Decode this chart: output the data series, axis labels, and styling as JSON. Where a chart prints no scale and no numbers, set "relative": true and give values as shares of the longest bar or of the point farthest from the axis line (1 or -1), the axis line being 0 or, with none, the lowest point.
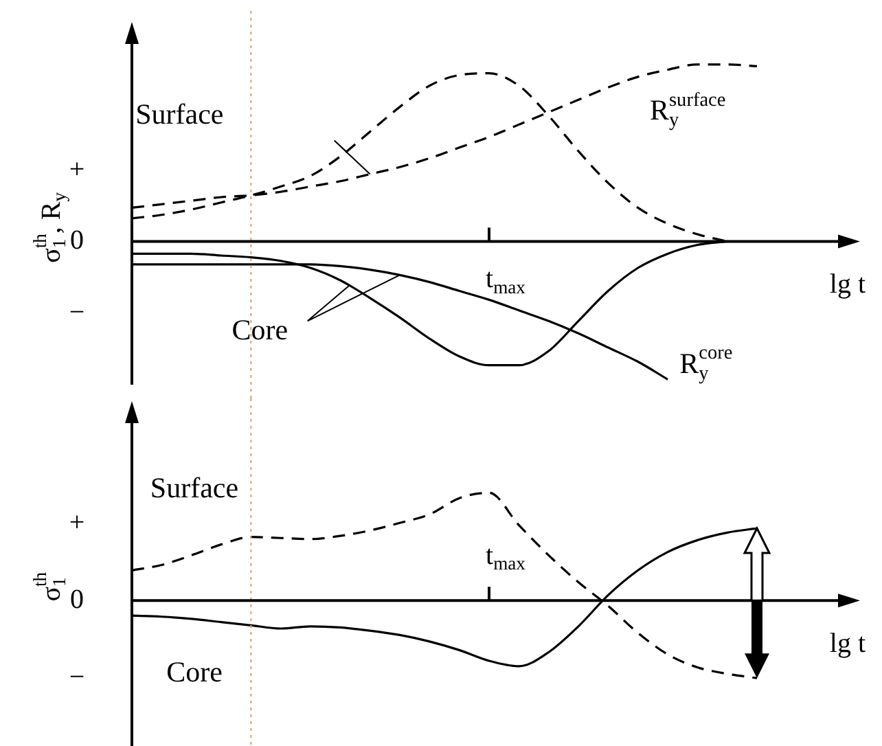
{
  "chart_data": [
    {
      "type": "line",
      "relative": true,
      "ylabel": "σ$_{1}$$^{th}$, R$_{y}$",
      "xlabel": "lg t",
      "categories": [
        null,
        null,
        null,
        null,
        null,
        null,
        null,
        null,
        null,
        null,
        null,
        null,
        null,
        null,
        null,
        null,
        null,
        null,
        null,
        null,
        null,
        null,
        null,
        null,
        null
      ],
      "annotations": [
        "+",
        "0",
        "−",
        "t$_{max}$"
      ],
      "series": [
        {
          "name": "Surface",
          "color": "#000000",
          "line_style": "dashed",
          "values": [
            0.13,
            0.15,
            0.18,
            0.22,
            0.26,
            0.31,
            0.37,
            0.48,
            0.62,
            0.76,
            0.88,
            0.94,
            0.95,
            0.88,
            0.71,
            0.51,
            0.33,
            0.19,
            0.1,
            0.04,
            0,
            null,
            null,
            null,
            null
          ]
        },
        {
          "name": "R$_{y}$$^{surface}$",
          "color": "#000000",
          "line_style": "dashed",
          "values": [
            0.19,
            0.21,
            0.23,
            0.25,
            0.26,
            0.28,
            0.31,
            0.34,
            0.38,
            0.42,
            0.47,
            0.53,
            0.59,
            0.66,
            0.73,
            0.8,
            0.87,
            0.93,
            0.97,
            1,
            1,
            0.99,
            null,
            null,
            null
          ]
        },
        {
          "name": "Core",
          "color": "#000000",
          "line_style": "solid",
          "values": [
            -0.07,
            -0.07,
            -0.07,
            -0.08,
            -0.09,
            -0.11,
            -0.15,
            -0.22,
            -0.32,
            -0.43,
            -0.55,
            -0.65,
            -0.7,
            -0.7,
            -0.62,
            -0.45,
            -0.28,
            -0.15,
            -0.07,
            -0.02,
            0,
            null,
            null,
            null,
            null
          ]
        },
        {
          "name": "R$_{y}$$^{core}$",
          "color": "#000000",
          "line_style": "solid",
          "values": [
            -0.13,
            -0.13,
            -0.13,
            -0.13,
            -0.13,
            -0.13,
            -0.13,
            -0.14,
            -0.16,
            -0.19,
            -0.23,
            -0.28,
            -0.33,
            -0.39,
            -0.45,
            -0.52,
            -0.6,
            -0.68,
            -0.78,
            null,
            null,
            null,
            null,
            null,
            null
          ]
        }
      ]
    },
    {
      "type": "line",
      "relative": true,
      "ylabel": "σ$_{1}$$^{th}$",
      "xlabel": "lg t",
      "categories": [
        null,
        null,
        null,
        null,
        null,
        null,
        null,
        null,
        null,
        null,
        null,
        null,
        null,
        null,
        null,
        null,
        null,
        null,
        null,
        null,
        null,
        null,
        null,
        null,
        null
      ],
      "annotations": [
        "+",
        "0",
        "−",
        "t$_{max}$"
      ],
      "series": [
        {
          "name": "Surface",
          "color": "#000000",
          "line_style": "dashed",
          "values": [
            0.28,
            0.33,
            0.42,
            0.52,
            0.59,
            0.58,
            0.57,
            0.6,
            0.65,
            0.72,
            0.8,
            0.95,
            1,
            0.7,
            0.42,
            0.17,
            -0.05,
            -0.3,
            -0.5,
            -0.62,
            -0.68,
            -0.72,
            null,
            null,
            null
          ]
        },
        {
          "name": "Core",
          "color": "#000000",
          "line_style": "solid",
          "values": [
            -0.14,
            -0.15,
            -0.17,
            -0.2,
            -0.23,
            -0.26,
            -0.24,
            -0.25,
            -0.28,
            -0.32,
            -0.38,
            -0.46,
            -0.56,
            -0.61,
            -0.48,
            -0.24,
            0.05,
            0.28,
            0.45,
            0.56,
            0.63,
            0.67,
            null,
            null,
            null
          ]
        }
      ]
    }
  ]
}
